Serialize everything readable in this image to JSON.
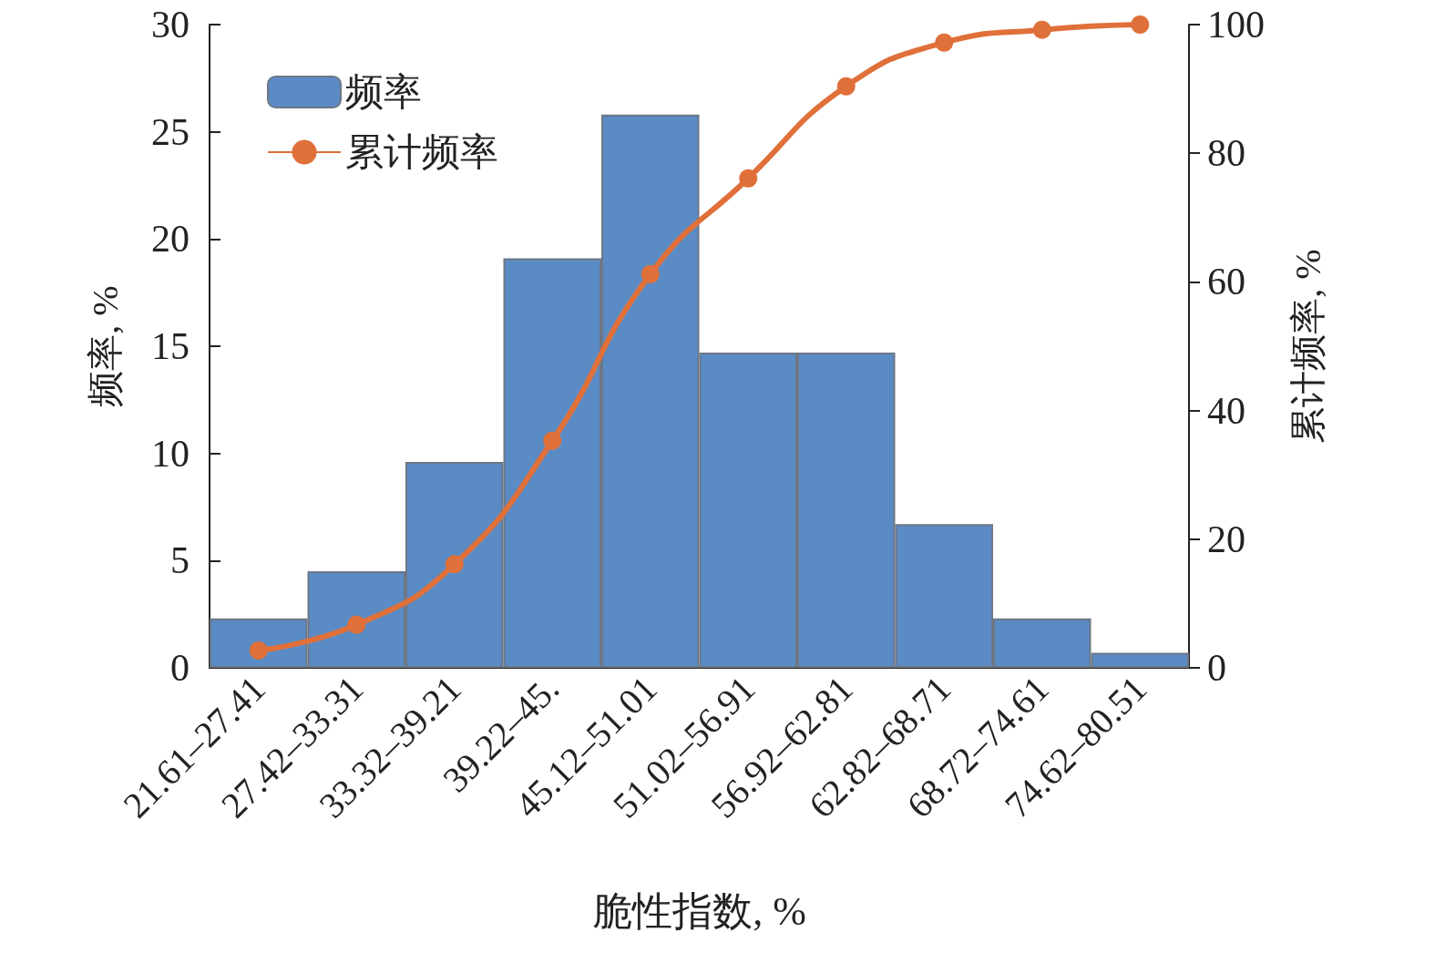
{
  "chart_data": {
    "type": "bar",
    "xlabel": "脆性指数, %",
    "ylabel": "频率, %",
    "y2label": "累计频率, %",
    "categories": [
      "21.61–27.41",
      "27.42–33.31",
      "33.32–39.21",
      "39.22–45.",
      "45.12–51.01",
      "51.02–56.91",
      "56.92–62.81",
      "62.82–68.71",
      "68.72–74.61",
      "74.62–80.51"
    ],
    "series": [
      {
        "name": "频率",
        "color": "#5b8bc4",
        "values": [
          2.3,
          4.5,
          9.6,
          19.1,
          25.8,
          14.7,
          14.7,
          6.7,
          2.3,
          0.7
        ]
      },
      {
        "name": "累计频率",
        "type": "line",
        "axis": "y2",
        "color": "#e0703a",
        "marker": "circle",
        "values": [
          2.7,
          6.7,
          16.1,
          35.3,
          61.2,
          76.1,
          90.4,
          97.2,
          99.2,
          100
        ]
      }
    ],
    "ylim": [
      0,
      30
    ],
    "yticks": [
      0,
      5,
      10,
      15,
      20,
      25,
      30
    ],
    "y2lim": [
      0,
      100
    ],
    "y2ticks": [
      0,
      20,
      40,
      60,
      80,
      100
    ],
    "grid": false,
    "legend": "top left"
  }
}
